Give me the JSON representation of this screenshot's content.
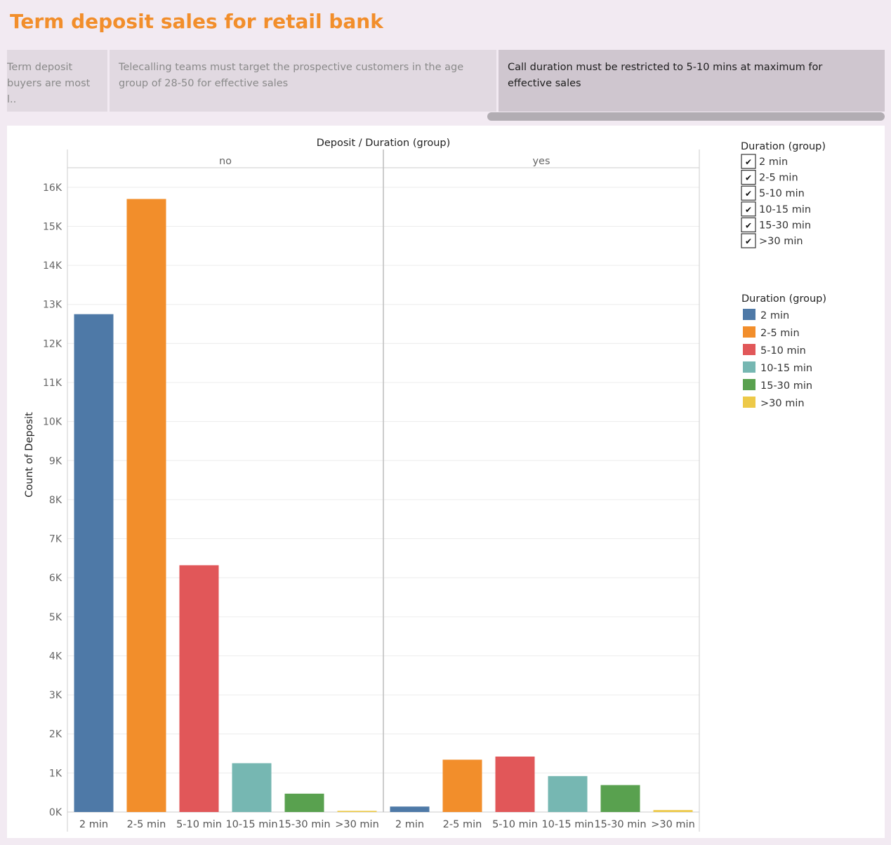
{
  "title": "Term deposit sales for retail bank",
  "story_points": [
    {
      "text": "Term deposit buyers are most l..",
      "active": false
    },
    {
      "text": "Telecalling teams must target the prospective customers in the age group of 28-50 for effective sales",
      "active": false
    },
    {
      "text": "Call duration must be restricted to 5-10 mins at maximum for effective sales",
      "active": true
    }
  ],
  "filter_legend": {
    "title": "Duration (group)",
    "items": [
      "2 min",
      "2-5 min",
      "5-10 min",
      "10-15 min",
      "15-30 min",
      ">30 min"
    ]
  },
  "color_legend": {
    "title": "Duration (group)",
    "items": [
      {
        "label": "2 min",
        "color": "#4e79a7"
      },
      {
        "label": "2-5 min",
        "color": "#f28e2b"
      },
      {
        "label": "5-10 min",
        "color": "#e15759"
      },
      {
        "label": "10-15 min",
        "color": "#76b7b2"
      },
      {
        "label": "15-30 min",
        "color": "#59a14f"
      },
      {
        "label": ">30 min",
        "color": "#edc948"
      }
    ]
  },
  "chart_data": {
    "type": "bar",
    "title": "Deposit  /  Duration (group)",
    "ylabel": "Count of Deposit",
    "xlabel": "",
    "ylim": [
      0,
      16500
    ],
    "yticks": [
      0,
      1000,
      2000,
      3000,
      4000,
      5000,
      6000,
      7000,
      8000,
      9000,
      10000,
      11000,
      12000,
      13000,
      14000,
      15000,
      16000
    ],
    "ytick_labels": [
      "0K",
      "1K",
      "2K",
      "3K",
      "4K",
      "5K",
      "6K",
      "7K",
      "8K",
      "9K",
      "10K",
      "11K",
      "12K",
      "13K",
      "14K",
      "15K",
      "16K"
    ],
    "categories": [
      "2 min",
      "2-5 min",
      "5-10 min",
      "10-15 min",
      "15-30 min",
      ">30 min"
    ],
    "panels": [
      {
        "name": "no",
        "values": [
          12750,
          15700,
          6320,
          1250,
          470,
          30
        ]
      },
      {
        "name": "yes",
        "values": [
          140,
          1340,
          1420,
          920,
          690,
          50
        ]
      }
    ],
    "grid": true
  }
}
